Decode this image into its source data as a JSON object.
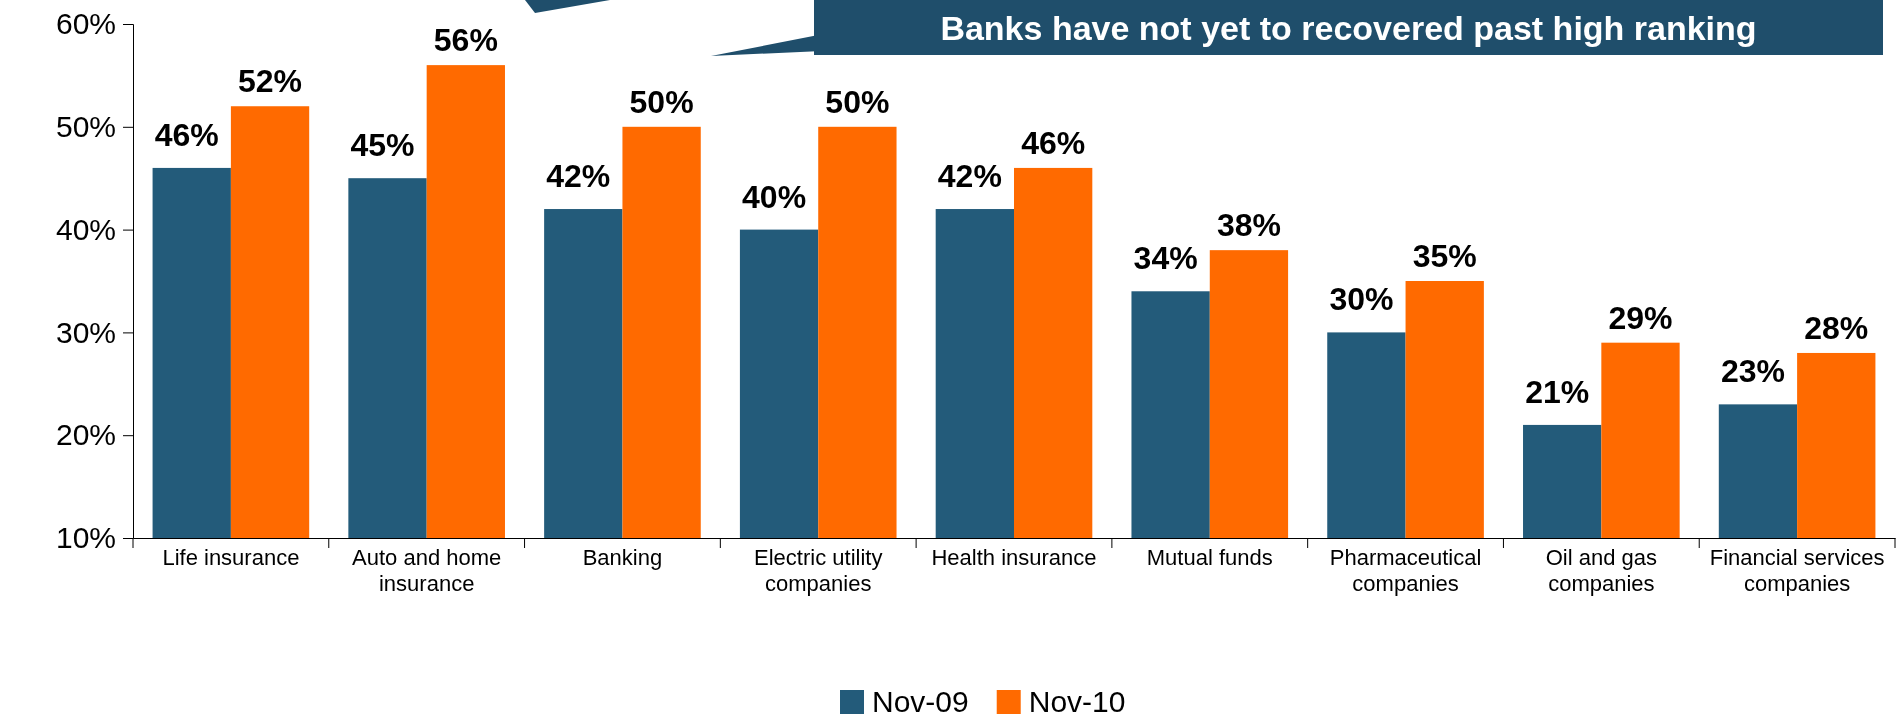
{
  "chart_data": {
    "type": "bar",
    "categories": [
      "Life insurance",
      "Auto and home insurance",
      "Banking",
      "Electric utility companies",
      "Health insurance",
      "Mutual funds",
      "Pharmaceutical companies",
      "Oil and gas companies",
      "Financial services companies"
    ],
    "series": [
      {
        "name": "Nov-09",
        "color": "#235b7a",
        "values": [
          46,
          45,
          42,
          40,
          42,
          34,
          30,
          21,
          23
        ]
      },
      {
        "name": "Nov-10",
        "color": "#ff6a00",
        "values": [
          52,
          56,
          50,
          50,
          46,
          38,
          35,
          29,
          28
        ]
      }
    ],
    "ylim": [
      10,
      60
    ],
    "yticks": [
      {
        "value": 10,
        "label": "10%"
      },
      {
        "value": 20,
        "label": "20%"
      },
      {
        "value": 30,
        "label": "30%"
      },
      {
        "value": 40,
        "label": "40%"
      },
      {
        "value": 50,
        "label": "50%"
      },
      {
        "value": 60,
        "label": "60%"
      }
    ],
    "value_labels": [
      [
        "46%",
        "45%",
        "42%",
        "40%",
        "42%",
        "34%",
        "30%",
        "21%",
        "23%"
      ],
      [
        "52%",
        "56%",
        "50%",
        "50%",
        "46%",
        "38%",
        "35%",
        "29%",
        "28%"
      ]
    ],
    "annotations": [
      "Banks have not yet to recovered past high ranking"
    ],
    "legend": "bottom",
    "grid": false
  }
}
